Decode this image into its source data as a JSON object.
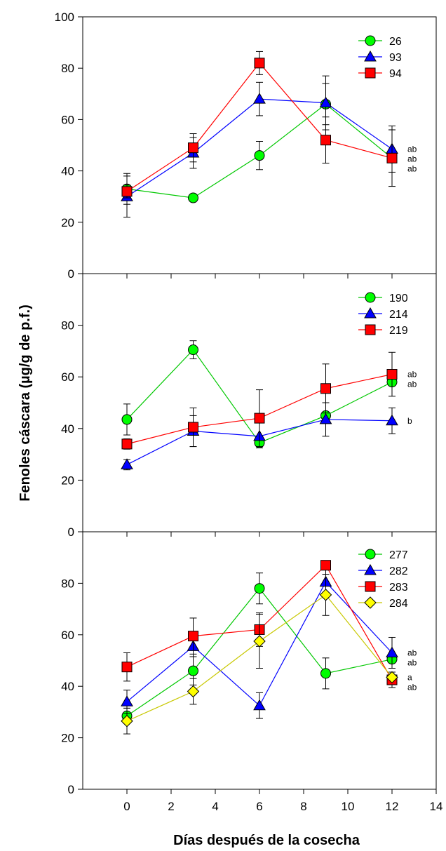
{
  "chart_data": {
    "type": "line",
    "xlabel": "Días después de la cosecha",
    "ylabel": "Fenoles cáscara (µg/g de p.f.)",
    "xlim": [
      -2,
      14
    ],
    "x_ticks": [
      0,
      2,
      4,
      6,
      8,
      10,
      12,
      14
    ],
    "x": [
      0,
      3,
      6,
      9,
      12
    ],
    "panels": [
      {
        "ylim": [
          0,
          100
        ],
        "y_ticks": [
          0,
          20,
          40,
          60,
          80,
          100
        ],
        "legend_position": "top-right",
        "series": [
          {
            "name": "26",
            "color": "#00c800",
            "fill": "#00ff00",
            "marker": "circle",
            "values": [
              33,
              29.5,
              46,
              66,
              45
            ],
            "errors": [
              6,
              0,
              5.5,
              8,
              11
            ]
          },
          {
            "name": "93",
            "color": "#0000ff",
            "fill": "#0000ff",
            "marker": "triangle",
            "values": [
              30,
              47,
              68,
              66.5,
              48.5
            ],
            "errors": [
              8,
              6,
              6.5,
              10.5,
              9
            ]
          },
          {
            "name": "94",
            "color": "#ff0000",
            "fill": "#ff0000",
            "marker": "square",
            "values": [
              32,
              49,
              82,
              52,
              45
            ],
            "errors": [
              2.5,
              5.5,
              4.5,
              9,
              11
            ]
          }
        ],
        "letters": [
          "ab",
          "ab",
          "ab"
        ]
      },
      {
        "ylim": [
          0,
          100
        ],
        "y_ticks": [
          0,
          20,
          40,
          60,
          80
        ],
        "legend_position": "top-right",
        "series": [
          {
            "name": "190",
            "color": "#00c800",
            "fill": "#00ff00",
            "marker": "circle",
            "values": [
              43.5,
              70.5,
              34.5,
              45,
              58
            ],
            "errors": [
              6,
              3.5,
              2,
              0,
              0
            ]
          },
          {
            "name": "214",
            "color": "#0000ff",
            "fill": "#0000ff",
            "marker": "triangle",
            "values": [
              26,
              39,
              37,
              43.5,
              43
            ],
            "errors": [
              2,
              6,
              0,
              6.5,
              5
            ]
          },
          {
            "name": "219",
            "color": "#ff0000",
            "fill": "#ff0000",
            "marker": "square",
            "values": [
              34,
              40.5,
              44,
              55.5,
              61
            ],
            "errors": [
              2,
              7.5,
              11,
              9.5,
              8.5
            ]
          }
        ],
        "letters": [
          "ab",
          "ab",
          "b"
        ]
      },
      {
        "ylim": [
          0,
          100
        ],
        "y_ticks": [
          0,
          20,
          40,
          60,
          80
        ],
        "legend_position": "top-right",
        "series": [
          {
            "name": "277",
            "color": "#00c800",
            "fill": "#00ff00",
            "marker": "circle",
            "values": [
              28.5,
              46,
              78,
              45,
              50.5
            ],
            "errors": [
              3,
              5.5,
              6,
              6,
              0
            ]
          },
          {
            "name": "282",
            "color": "#0000ff",
            "fill": "#0000ff",
            "marker": "triangle",
            "values": [
              34,
              55.5,
              32.5,
              80.5,
              53
            ],
            "errors": [
              4.5,
              4,
              5,
              6,
              6
            ]
          },
          {
            "name": "283",
            "color": "#ff0000",
            "fill": "#ff0000",
            "marker": "square",
            "values": [
              47.5,
              59.5,
              62,
              87,
              42.5
            ],
            "errors": [
              5.5,
              7,
              6.5,
              0,
              3
            ]
          },
          {
            "name": "284",
            "color": "#c8c800",
            "fill": "#ffff00",
            "marker": "diamond",
            "values": [
              26.5,
              38,
              57.5,
              75.5,
              43.5
            ],
            "errors": [
              5,
              5,
              10.5,
              8,
              0
            ]
          }
        ],
        "letters": [
          "ab",
          "ab",
          "a",
          "ab"
        ]
      }
    ]
  }
}
